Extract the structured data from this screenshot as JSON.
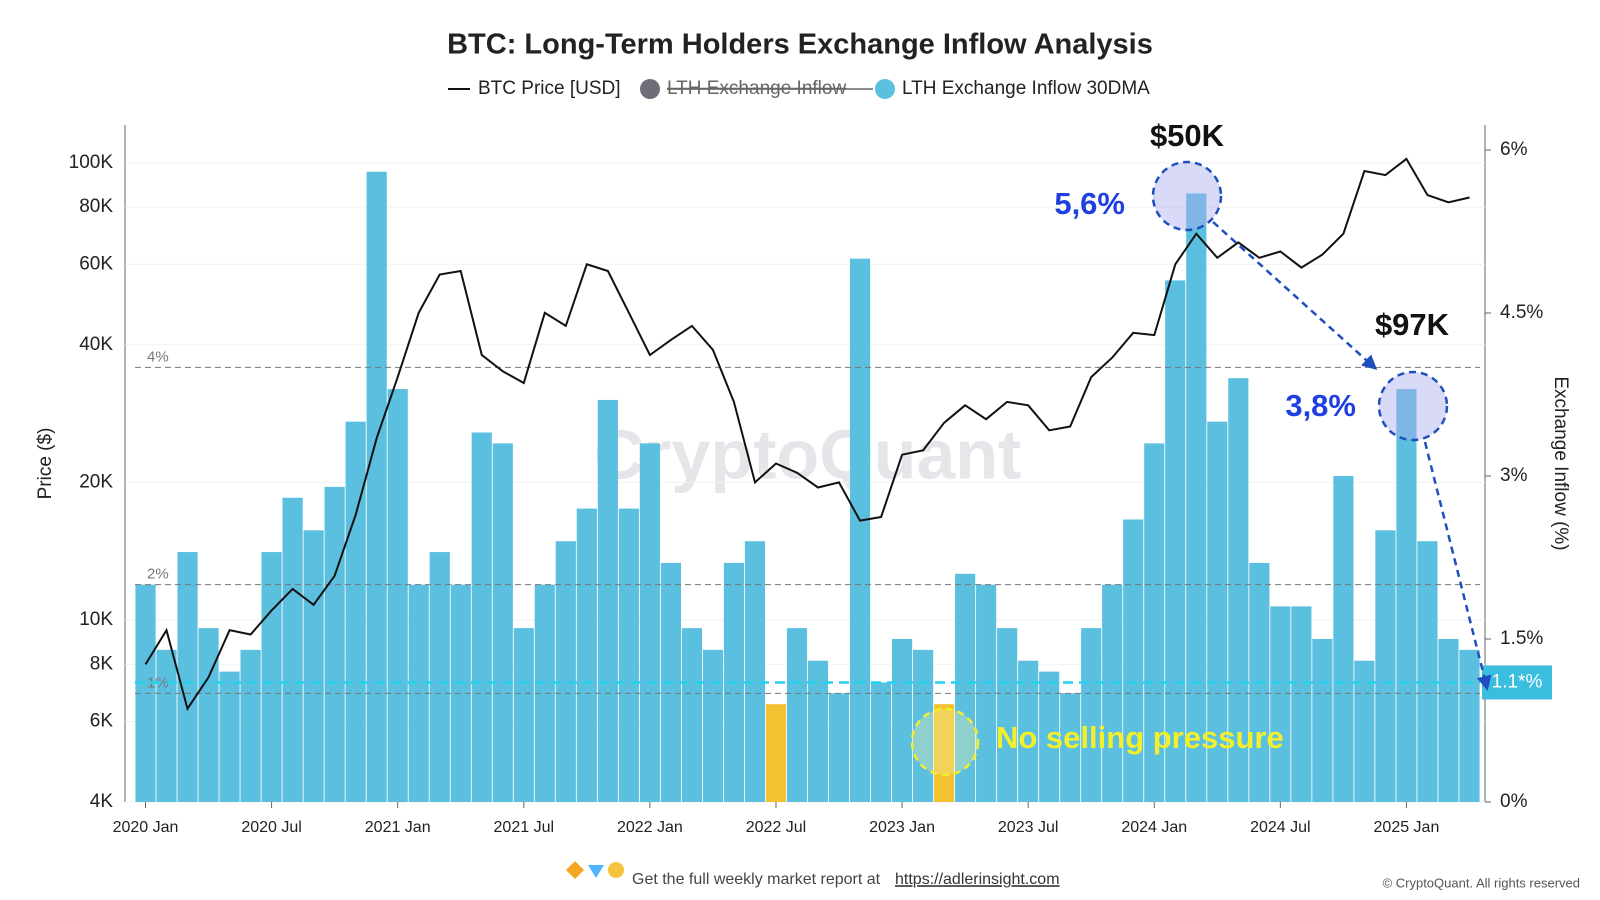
{
  "chart_data": {
    "type": "bar_line",
    "title": "BTC: Long-Term Holders Exchange Inflow Analysis",
    "watermark": "CryptoQuant",
    "y_label": "Price ($)",
    "y2_label": "Exchange Inflow (%)",
    "log_y": true,
    "categories": [
      "2020 Jan",
      null,
      null,
      null,
      null,
      null,
      "2020 Jul",
      null,
      null,
      null,
      null,
      null,
      "2021 Jan",
      null,
      null,
      null,
      null,
      null,
      "2021 Jul",
      null,
      null,
      null,
      null,
      null,
      "2022 Jan",
      null,
      null,
      null,
      null,
      null,
      "2022 Jul",
      null,
      null,
      null,
      null,
      null,
      "2023 Jan",
      null,
      null,
      null,
      null,
      null,
      "2023 Jul",
      null,
      null,
      null,
      null,
      null,
      "2024 Jan",
      null,
      null,
      null,
      null,
      null,
      "2024 Jul",
      null,
      null,
      null,
      null,
      null,
      "2025 Jan",
      null,
      null,
      null
    ],
    "series": [
      {
        "name": "BTC Price [USD]",
        "color": "#111111",
        "axis": "y",
        "mark": "line",
        "values": [
          8000,
          9500,
          6400,
          7500,
          9500,
          9300,
          10500,
          11700,
          10800,
          12500,
          17000,
          25000,
          34000,
          47000,
          57000,
          58000,
          38000,
          35000,
          33000,
          47000,
          44000,
          60000,
          58000,
          47000,
          38000,
          41000,
          44000,
          39000,
          30000,
          20000,
          22000,
          21000,
          19500,
          20000,
          16500,
          16800,
          23000,
          23500,
          27000,
          29500,
          27500,
          30000,
          29500,
          26000,
          26500,
          34000,
          37500,
          42500,
          42000,
          60000,
          70000,
          62000,
          67000,
          62000,
          64000,
          59000,
          63000,
          70000,
          96000,
          94000,
          102000,
          85000,
          82000,
          84000
        ]
      },
      {
        "name": "LTH Exchange Inflow",
        "color": "#6e6e78",
        "hidden": true
      },
      {
        "name": "LTH Exchange Inflow 30DMA",
        "color": "#5bbfdf",
        "axis": "y2",
        "mark": "bar",
        "values": [
          2.0,
          1.4,
          2.3,
          1.6,
          1.2,
          1.4,
          2.3,
          2.8,
          2.5,
          2.9,
          3.5,
          5.8,
          3.8,
          2.0,
          2.3,
          2.0,
          3.4,
          3.3,
          1.6,
          2.0,
          2.4,
          2.7,
          3.7,
          2.7,
          3.3,
          2.2,
          1.6,
          1.4,
          2.2,
          2.4,
          0.9,
          1.6,
          1.3,
          1.0,
          5.0,
          1.1,
          1.5,
          1.4,
          0.9,
          2.1,
          2.0,
          1.6,
          1.3,
          1.2,
          1.0,
          1.6,
          2.0,
          2.6,
          3.3,
          4.8,
          5.6,
          3.5,
          3.9,
          2.2,
          1.8,
          1.8,
          1.5,
          3.0,
          1.3,
          2.5,
          3.8,
          2.4,
          1.5,
          1.4
        ],
        "colors": [
          "#5bbfdf",
          "#5bbfdf",
          "#5bbfdf",
          "#5bbfdf",
          "#5bbfdf",
          "#5bbfdf",
          "#5bbfdf",
          "#5bbfdf",
          "#5bbfdf",
          "#5bbfdf",
          "#5bbfdf",
          "#5bbfdf",
          "#5bbfdf",
          "#5bbfdf",
          "#5bbfdf",
          "#5bbfdf",
          "#5bbfdf",
          "#5bbfdf",
          "#5bbfdf",
          "#5bbfdf",
          "#5bbfdf",
          "#5bbfdf",
          "#5bbfdf",
          "#5bbfdf",
          "#5bbfdf",
          "#5bbfdf",
          "#5bbfdf",
          "#5bbfdf",
          "#5bbfdf",
          "#5bbfdf",
          "#f2c230",
          "#5bbfdf",
          "#5bbfdf",
          "#5bbfdf",
          "#5bbfdf",
          "#5bbfdf",
          "#5bbfdf",
          "#5bbfdf",
          "#f2c230",
          "#5bbfdf",
          "#5bbfdf",
          "#5bbfdf",
          "#5bbfdf",
          "#5bbfdf",
          "#5bbfdf",
          "#5bbfdf",
          "#5bbfdf",
          "#5bbfdf",
          "#5bbfdf",
          "#5bbfdf",
          "#5bbfdf",
          "#5bbfdf",
          "#5bbfdf",
          "#5bbfdf",
          "#5bbfdf",
          "#5bbfdf",
          "#5bbfdf",
          "#5bbfdf",
          "#5bbfdf",
          "#5bbfdf",
          "#5bbfdf",
          "#5bbfdf",
          "#5bbfdf",
          "#5bbfdf"
        ]
      }
    ],
    "ylim": [
      4000,
      121000
    ],
    "yticks": [
      {
        "value": 4000,
        "label": "4K"
      },
      {
        "value": 6000,
        "label": "6K"
      },
      {
        "value": 8000,
        "label": "8K"
      },
      {
        "value": 10000,
        "label": "10K"
      },
      {
        "value": 20000,
        "label": "20K"
      },
      {
        "value": 40000,
        "label": "40K"
      },
      {
        "value": 60000,
        "label": "60K"
      },
      {
        "value": 80000,
        "label": "80K"
      },
      {
        "value": 100000,
        "label": "100K"
      }
    ],
    "y2lim": [
      0,
      6.23
    ],
    "y2ticks": [
      {
        "value": 0,
        "label": "0%"
      },
      {
        "value": 1.5,
        "label": "1.5%"
      },
      {
        "value": 3,
        "label": "3%"
      },
      {
        "value": 4.5,
        "label": "4.5%"
      },
      {
        "value": 6,
        "label": "6%"
      }
    ],
    "reference_lines": [
      {
        "value": 4,
        "label": "4%"
      },
      {
        "value": 2,
        "label": "2%"
      },
      {
        "value": 1,
        "label": "1%"
      }
    ],
    "current_line": {
      "value": 1.1,
      "label": "1.1*%",
      "color": "#22d3ee"
    },
    "annotations": [
      "$50K",
      "5,6%",
      "$97K",
      "3,8%",
      "No selling pressure"
    ],
    "footer": {
      "text": "Get the full weekly market report at",
      "link": "https://adlerinsight.com",
      "copyright": "© CryptoQuant. All rights reserved"
    }
  }
}
